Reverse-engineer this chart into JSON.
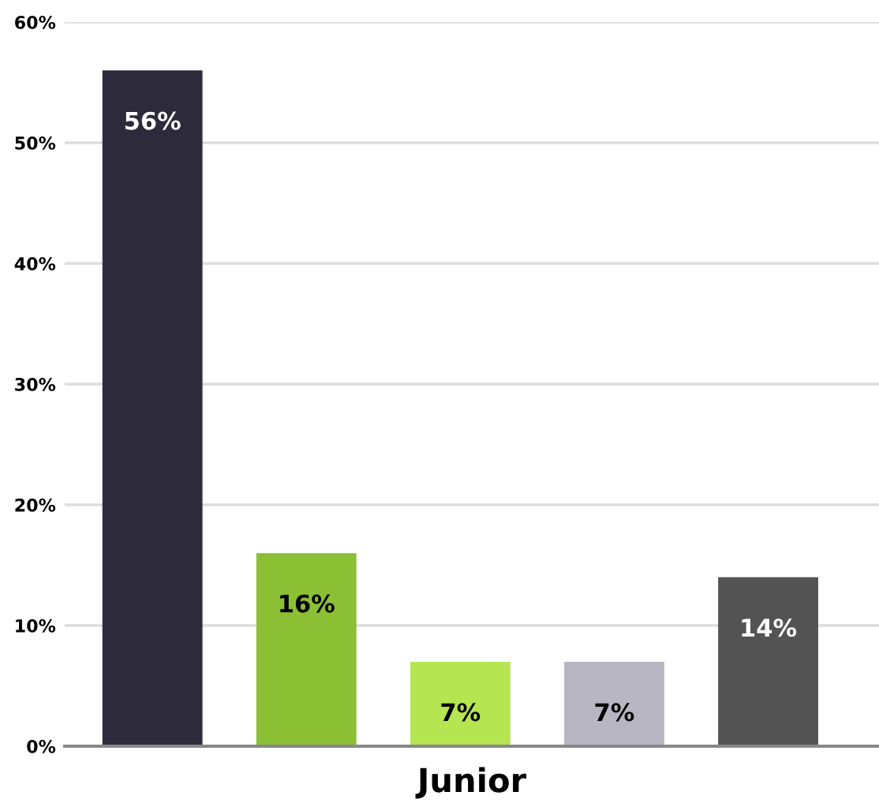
{
  "chart_data": {
    "type": "bar",
    "categories": [
      null,
      null,
      null,
      null,
      null
    ],
    "values": [
      56,
      16,
      7,
      7,
      14
    ],
    "colors": [
      "#2d2a3b",
      "#8bc034",
      "#b5e551",
      "#b9b6c3",
      "#535353"
    ],
    "value_labels": [
      "56%",
      "16%",
      "7%",
      "7%",
      "14%"
    ],
    "xlabel": "Junior",
    "ylim": [
      0,
      60
    ],
    "yticks": [
      {
        "value": 0,
        "label": "0%"
      },
      {
        "value": 10,
        "label": "10%"
      },
      {
        "value": 20,
        "label": "20%"
      },
      {
        "value": 30,
        "label": "30%"
      },
      {
        "value": 40,
        "label": "40%"
      },
      {
        "value": 50,
        "label": "50%"
      },
      {
        "value": 60,
        "label": "60%"
      }
    ],
    "grid": "y"
  }
}
